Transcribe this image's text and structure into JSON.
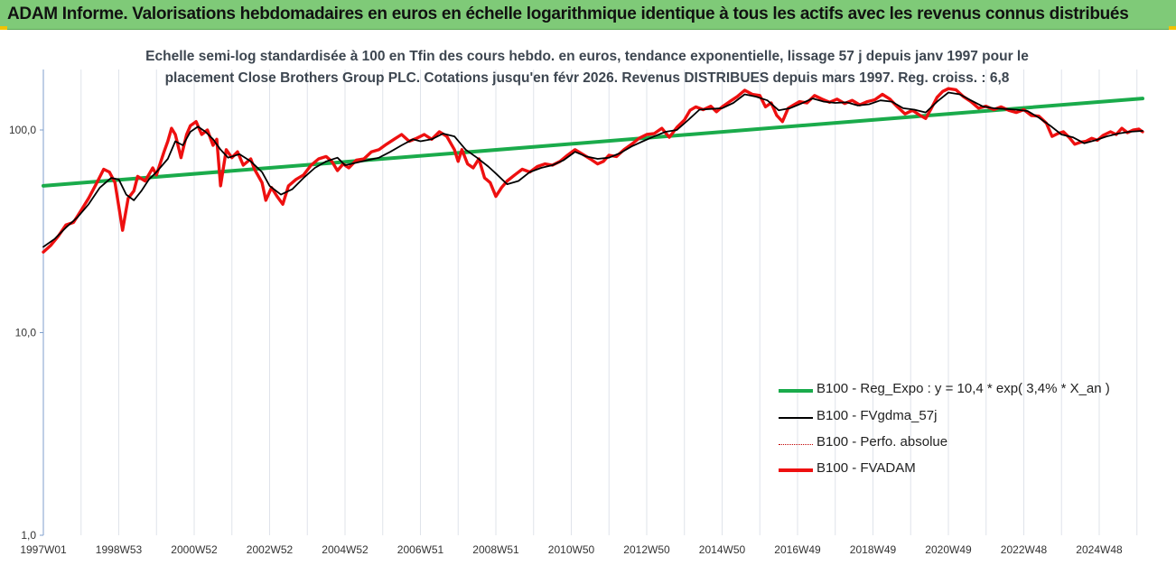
{
  "header": {
    "title": "ADAM Informe. Valorisations hebdomadaires en euros en échelle logarithmique identique à tous les actifs avec les revenus connus distribués"
  },
  "chart_data": {
    "type": "line",
    "title_lines": [
      "Echelle semi-log standardisée à 100 en Tfin des cours hebdo. en euros, tendance exponentielle, lissage 57 j depuis janv 1997 pour le",
      "placement Close Brothers Group PLC. Cotations jusqu'en févr 2026. Revenus DISTRIBUES depuis mars 1997. Reg. croiss. : 6,8"
    ],
    "xlabel": "",
    "ylabel": "",
    "y_scale": "log",
    "ylim": [
      1,
      200
    ],
    "y_ticks": [
      1,
      10,
      100
    ],
    "y_tick_labels": [
      "1,0",
      "10,0",
      "100,0"
    ],
    "x_range": [
      1997.0,
      2026.15
    ],
    "x_tick_labels": [
      "1997W01",
      "1998W53",
      "2000W52",
      "2002W52",
      "2004W52",
      "2006W51",
      "2008W51",
      "2010W50",
      "2012W50",
      "2014W50",
      "2016W49",
      "2018W49",
      "2020W49",
      "2022W48",
      "2024W48"
    ],
    "x_tick_positions": [
      1997.0,
      1999.0,
      2001.0,
      2003.0,
      2005.0,
      2007.0,
      2009.0,
      2011.0,
      2013.0,
      2015.0,
      2017.0,
      2019.0,
      2021.0,
      2023.0,
      2025.0
    ],
    "grid": "vertical",
    "legend_position": "bottom-right",
    "series": [
      {
        "name": "B100 - Reg_Expo : y = 10,4 * exp( 3,4% *  X_an )",
        "color": "#1aab4b",
        "style": "solid",
        "points": [
          [
            1997.0,
            53.0
          ],
          [
            2026.15,
            143.0
          ]
        ]
      },
      {
        "name": "B100 - FVgdma_57j",
        "color": "#000000",
        "style": "solid",
        "points": [
          [
            1997.0,
            26.5
          ],
          [
            1997.3,
            29
          ],
          [
            1997.6,
            33
          ],
          [
            1997.9,
            37
          ],
          [
            1998.2,
            43
          ],
          [
            1998.5,
            52
          ],
          [
            1998.8,
            58
          ],
          [
            1999.0,
            57
          ],
          [
            1999.2,
            48
          ],
          [
            1999.4,
            45
          ],
          [
            1999.6,
            50
          ],
          [
            1999.8,
            57
          ],
          [
            2000.0,
            62
          ],
          [
            2000.3,
            72
          ],
          [
            2000.5,
            88
          ],
          [
            2000.7,
            84
          ],
          [
            2000.9,
            98
          ],
          [
            2001.1,
            104
          ],
          [
            2001.3,
            98
          ],
          [
            2001.5,
            90
          ],
          [
            2001.7,
            80
          ],
          [
            2001.9,
            73
          ],
          [
            2002.2,
            76
          ],
          [
            2002.5,
            70
          ],
          [
            2002.8,
            62
          ],
          [
            2003.0,
            53
          ],
          [
            2003.3,
            48
          ],
          [
            2003.6,
            51
          ],
          [
            2003.9,
            58
          ],
          [
            2004.2,
            65
          ],
          [
            2004.5,
            70
          ],
          [
            2004.8,
            73
          ],
          [
            2005.0,
            67
          ],
          [
            2005.3,
            69
          ],
          [
            2005.6,
            71
          ],
          [
            2005.9,
            73
          ],
          [
            2006.2,
            78
          ],
          [
            2006.5,
            84
          ],
          [
            2006.8,
            90
          ],
          [
            2007.0,
            88
          ],
          [
            2007.3,
            90
          ],
          [
            2007.6,
            96
          ],
          [
            2007.9,
            93
          ],
          [
            2008.2,
            80
          ],
          [
            2008.5,
            73
          ],
          [
            2008.8,
            66
          ],
          [
            2009.0,
            61
          ],
          [
            2009.3,
            54
          ],
          [
            2009.6,
            56
          ],
          [
            2009.9,
            62
          ],
          [
            2010.2,
            65
          ],
          [
            2010.5,
            67
          ],
          [
            2010.8,
            71
          ],
          [
            2011.1,
            78
          ],
          [
            2011.4,
            74
          ],
          [
            2011.7,
            72
          ],
          [
            2012.0,
            73
          ],
          [
            2012.3,
            77
          ],
          [
            2012.6,
            83
          ],
          [
            2012.9,
            88
          ],
          [
            2013.2,
            93
          ],
          [
            2013.5,
            98
          ],
          [
            2013.8,
            100
          ],
          [
            2014.1,
            112
          ],
          [
            2014.4,
            126
          ],
          [
            2014.7,
            127
          ],
          [
            2015.0,
            128
          ],
          [
            2015.3,
            136
          ],
          [
            2015.6,
            150
          ],
          [
            2015.9,
            146
          ],
          [
            2016.2,
            140
          ],
          [
            2016.5,
            125
          ],
          [
            2016.8,
            128
          ],
          [
            2017.1,
            135
          ],
          [
            2017.4,
            143
          ],
          [
            2017.7,
            138
          ],
          [
            2018.0,
            136
          ],
          [
            2018.3,
            137
          ],
          [
            2018.6,
            132
          ],
          [
            2018.9,
            134
          ],
          [
            2019.2,
            140
          ],
          [
            2019.5,
            138
          ],
          [
            2019.8,
            128
          ],
          [
            2020.1,
            126
          ],
          [
            2020.4,
            122
          ],
          [
            2020.7,
            138
          ],
          [
            2021.0,
            153
          ],
          [
            2021.3,
            150
          ],
          [
            2021.6,
            140
          ],
          [
            2021.9,
            131
          ],
          [
            2022.2,
            128
          ],
          [
            2022.5,
            127
          ],
          [
            2022.8,
            126
          ],
          [
            2023.1,
            124
          ],
          [
            2023.4,
            115
          ],
          [
            2023.7,
            105
          ],
          [
            2024.0,
            95
          ],
          [
            2024.3,
            92
          ],
          [
            2024.6,
            86
          ],
          [
            2024.9,
            89
          ],
          [
            2025.2,
            93
          ],
          [
            2025.5,
            96
          ],
          [
            2025.8,
            98
          ],
          [
            2026.15,
            99
          ]
        ]
      },
      {
        "name": "B100 - Perfo. absolue",
        "color": "#c00000",
        "style": "dotted",
        "points": []
      },
      {
        "name": "B100 - FVADAM",
        "color": "#ee1010",
        "style": "solid",
        "points": [
          [
            1997.0,
            25.0
          ],
          [
            1997.2,
            27
          ],
          [
            1997.4,
            30
          ],
          [
            1997.6,
            34
          ],
          [
            1997.8,
            35
          ],
          [
            1998.0,
            40
          ],
          [
            1998.2,
            46
          ],
          [
            1998.4,
            54
          ],
          [
            1998.6,
            64
          ],
          [
            1998.75,
            62
          ],
          [
            1998.9,
            55
          ],
          [
            1999.0,
            42
          ],
          [
            1999.1,
            32
          ],
          [
            1999.25,
            46
          ],
          [
            1999.4,
            50
          ],
          [
            1999.5,
            59
          ],
          [
            1999.7,
            56
          ],
          [
            1999.9,
            65
          ],
          [
            2000.0,
            60
          ],
          [
            2000.2,
            78
          ],
          [
            2000.3,
            88
          ],
          [
            2000.4,
            102
          ],
          [
            2000.5,
            95
          ],
          [
            2000.65,
            73
          ],
          [
            2000.8,
            95
          ],
          [
            2000.9,
            105
          ],
          [
            2001.05,
            110
          ],
          [
            2001.2,
            95
          ],
          [
            2001.35,
            100
          ],
          [
            2001.5,
            84
          ],
          [
            2001.6,
            90
          ],
          [
            2001.7,
            53
          ],
          [
            2001.85,
            80
          ],
          [
            2002.0,
            73
          ],
          [
            2002.15,
            78
          ],
          [
            2002.3,
            67
          ],
          [
            2002.5,
            72
          ],
          [
            2002.6,
            64
          ],
          [
            2002.8,
            55
          ],
          [
            2002.9,
            45
          ],
          [
            2003.05,
            52
          ],
          [
            2003.2,
            47
          ],
          [
            2003.35,
            43
          ],
          [
            2003.5,
            53
          ],
          [
            2003.7,
            57
          ],
          [
            2003.9,
            60
          ],
          [
            2004.1,
            67
          ],
          [
            2004.3,
            72
          ],
          [
            2004.5,
            74
          ],
          [
            2004.65,
            70
          ],
          [
            2004.8,
            63
          ],
          [
            2004.95,
            68
          ],
          [
            2005.1,
            65
          ],
          [
            2005.3,
            71
          ],
          [
            2005.5,
            72
          ],
          [
            2005.7,
            78
          ],
          [
            2005.9,
            80
          ],
          [
            2006.1,
            85
          ],
          [
            2006.3,
            90
          ],
          [
            2006.5,
            95
          ],
          [
            2006.7,
            88
          ],
          [
            2006.9,
            91
          ],
          [
            2007.1,
            95
          ],
          [
            2007.3,
            90
          ],
          [
            2007.5,
            98
          ],
          [
            2007.7,
            93
          ],
          [
            2007.9,
            80
          ],
          [
            2008.0,
            70
          ],
          [
            2008.1,
            80
          ],
          [
            2008.25,
            68
          ],
          [
            2008.4,
            65
          ],
          [
            2008.55,
            72
          ],
          [
            2008.7,
            58
          ],
          [
            2008.85,
            55
          ],
          [
            2009.0,
            47
          ],
          [
            2009.15,
            52
          ],
          [
            2009.3,
            56
          ],
          [
            2009.5,
            60
          ],
          [
            2009.7,
            64
          ],
          [
            2009.9,
            62
          ],
          [
            2010.1,
            66
          ],
          [
            2010.3,
            68
          ],
          [
            2010.5,
            67
          ],
          [
            2010.7,
            70
          ],
          [
            2010.9,
            75
          ],
          [
            2011.1,
            80
          ],
          [
            2011.3,
            76
          ],
          [
            2011.5,
            72
          ],
          [
            2011.7,
            68
          ],
          [
            2011.85,
            70
          ],
          [
            2012.0,
            75
          ],
          [
            2012.2,
            74
          ],
          [
            2012.4,
            80
          ],
          [
            2012.6,
            85
          ],
          [
            2012.8,
            91
          ],
          [
            2013.0,
            95
          ],
          [
            2013.2,
            96
          ],
          [
            2013.4,
            102
          ],
          [
            2013.6,
            92
          ],
          [
            2013.8,
            103
          ],
          [
            2014.0,
            112
          ],
          [
            2014.15,
            125
          ],
          [
            2014.3,
            130
          ],
          [
            2014.5,
            126
          ],
          [
            2014.7,
            131
          ],
          [
            2014.85,
            123
          ],
          [
            2015.0,
            130
          ],
          [
            2015.2,
            138
          ],
          [
            2015.4,
            146
          ],
          [
            2015.6,
            157
          ],
          [
            2015.8,
            150
          ],
          [
            2016.0,
            148
          ],
          [
            2016.15,
            130
          ],
          [
            2016.3,
            136
          ],
          [
            2016.45,
            118
          ],
          [
            2016.6,
            110
          ],
          [
            2016.75,
            128
          ],
          [
            2016.9,
            133
          ],
          [
            2017.05,
            138
          ],
          [
            2017.25,
            136
          ],
          [
            2017.45,
            148
          ],
          [
            2017.65,
            142
          ],
          [
            2017.85,
            137
          ],
          [
            2018.05,
            142
          ],
          [
            2018.25,
            135
          ],
          [
            2018.45,
            140
          ],
          [
            2018.65,
            133
          ],
          [
            2018.85,
            138
          ],
          [
            2019.05,
            141
          ],
          [
            2019.25,
            150
          ],
          [
            2019.45,
            142
          ],
          [
            2019.65,
            130
          ],
          [
            2019.85,
            120
          ],
          [
            2020.05,
            125
          ],
          [
            2020.25,
            118
          ],
          [
            2020.4,
            114
          ],
          [
            2020.55,
            128
          ],
          [
            2020.7,
            145
          ],
          [
            2020.85,
            155
          ],
          [
            2021.0,
            160
          ],
          [
            2021.2,
            158
          ],
          [
            2021.4,
            146
          ],
          [
            2021.6,
            138
          ],
          [
            2021.8,
            128
          ],
          [
            2022.0,
            131
          ],
          [
            2022.2,
            126
          ],
          [
            2022.4,
            130
          ],
          [
            2022.6,
            125
          ],
          [
            2022.8,
            122
          ],
          [
            2023.0,
            126
          ],
          [
            2023.2,
            118
          ],
          [
            2023.4,
            117
          ],
          [
            2023.6,
            108
          ],
          [
            2023.75,
            93
          ],
          [
            2023.9,
            96
          ],
          [
            2024.05,
            98
          ],
          [
            2024.2,
            92
          ],
          [
            2024.35,
            85
          ],
          [
            2024.5,
            87
          ],
          [
            2024.65,
            88
          ],
          [
            2024.8,
            91
          ],
          [
            2024.95,
            89
          ],
          [
            2025.1,
            94
          ],
          [
            2025.3,
            98
          ],
          [
            2025.45,
            95
          ],
          [
            2025.6,
            102
          ],
          [
            2025.75,
            97
          ],
          [
            2025.9,
            100
          ],
          [
            2026.05,
            101
          ],
          [
            2026.15,
            98
          ]
        ]
      }
    ]
  }
}
